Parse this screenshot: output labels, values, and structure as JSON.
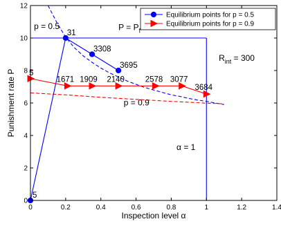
{
  "chart_data": {
    "type": "line",
    "xlabel": "Inspection level α",
    "ylabel": "Punishment rate P",
    "xlim": [
      0,
      1.4
    ],
    "ylim": [
      0,
      12
    ],
    "x_ticks": [
      0,
      0.2,
      0.4,
      0.6,
      0.8,
      1,
      1.2,
      1.4
    ],
    "x_tick_labels": [
      "0",
      "0.2",
      "0.4",
      "0.6",
      "0.8",
      "1",
      "1.2",
      "1.4"
    ],
    "y_ticks": [
      0,
      2,
      4,
      6,
      8,
      10,
      12
    ],
    "y_tick_labels": [
      "0",
      "2",
      "4",
      "6",
      "8",
      "10",
      "12"
    ],
    "grid": false,
    "legend_position": "top-right",
    "series": [
      {
        "name": "Equilibrium points for p = 0.5",
        "color": "#0000ff",
        "marker": "circle",
        "line_style": "solid",
        "x": [
          0,
          0.2,
          0.35,
          0.5
        ],
        "y": [
          0,
          10,
          9,
          8
        ],
        "point_labels": [
          "5",
          "31",
          "3308",
          "3695"
        ]
      },
      {
        "name": "Equilibrium points for p = 0.9",
        "color": "#ff0000",
        "marker": "triangle-right",
        "line_style": "solid",
        "x": [
          0,
          0.21,
          0.35,
          0.5,
          0.71,
          0.86,
          1
        ],
        "y": [
          7.5,
          7.05,
          7.05,
          7.05,
          7.05,
          7.05,
          6.55
        ],
        "point_labels": [
          "5",
          "1671",
          "1909",
          "2140",
          "2578",
          "3077",
          "3684"
        ]
      }
    ],
    "curves": [
      {
        "name": "p = 0.5",
        "color": "#0000ff",
        "line_style": "dashed",
        "x": [
          0.1,
          0.15,
          0.2,
          0.25,
          0.3,
          0.35,
          0.4,
          0.45,
          0.5,
          0.55,
          0.6,
          0.65,
          0.7,
          0.75,
          0.8,
          0.85,
          0.9,
          0.95,
          1.0,
          1.05,
          1.1
        ],
        "y": [
          12.0,
          10.95,
          10.05,
          9.4,
          8.9,
          8.5,
          8.15,
          7.85,
          7.6,
          7.35,
          7.15,
          6.95,
          6.8,
          6.65,
          6.5,
          6.4,
          6.28,
          6.18,
          6.1,
          6.0,
          5.9
        ]
      },
      {
        "name": "p = 0.9",
        "color": "#ff0000",
        "line_style": "dashed",
        "x": [
          0,
          0.2,
          0.4,
          0.6,
          0.8,
          1.0,
          1.1
        ],
        "y": [
          6.62,
          6.5,
          6.35,
          6.22,
          6.1,
          5.99,
          5.95
        ]
      },
      {
        "name": "P = Pf",
        "color": "#0000ff",
        "line_style": "solid",
        "x": [
          0,
          1
        ],
        "y": [
          10,
          10
        ]
      },
      {
        "name": "α = 1",
        "color": "#0000ff",
        "line_style": "solid",
        "x": [
          1,
          1
        ],
        "y": [
          0,
          10
        ]
      }
    ],
    "annotations": [
      {
        "text": "p = 0.5",
        "x": 0.02,
        "y": 10.55
      },
      {
        "text": "P = P",
        "sub": "f",
        "x": 0.5,
        "y": 10.5
      },
      {
        "text": "R",
        "sub": "int",
        "tail": " = 300",
        "x": 1.07,
        "y": 8.6
      },
      {
        "text": "p = 0.9",
        "x": 0.53,
        "y": 5.85
      },
      {
        "text": "α = 1",
        "x": 0.83,
        "y": 3.1
      }
    ]
  }
}
